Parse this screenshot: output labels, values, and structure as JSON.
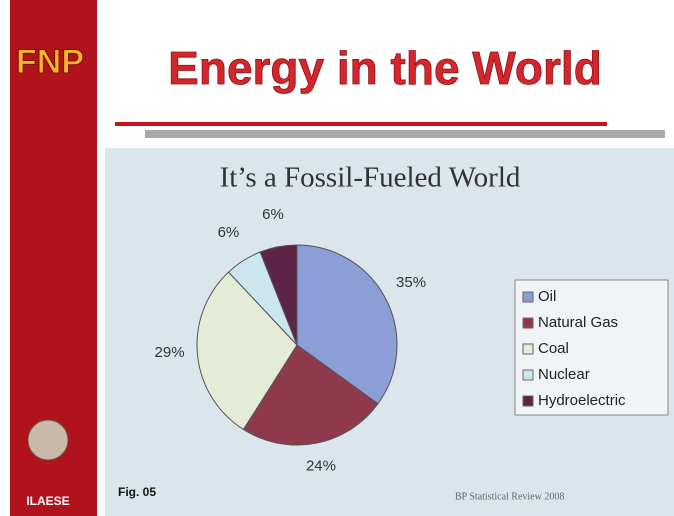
{
  "header": {
    "logo": "FNP",
    "title": "Energy in the World"
  },
  "sidebar": {
    "label": "ILAESE"
  },
  "caption": "Fig. 05",
  "chart_data": {
    "type": "pie",
    "title": "It’s a Fossil-Fueled World",
    "categories": [
      "Oil",
      "Natural Gas",
      "Coal",
      "Nuclear",
      "Hydroelectric"
    ],
    "values": [
      35,
      24,
      29,
      6,
      6
    ],
    "value_labels": [
      "35%",
      "24%",
      "29%",
      "6%",
      "6%"
    ],
    "colors": [
      "#8b9fd6",
      "#8e3a4c",
      "#e4ecd8",
      "#cbe6ec",
      "#5e2446"
    ],
    "legend": "right",
    "source": "BP Statistical Review 2008"
  }
}
